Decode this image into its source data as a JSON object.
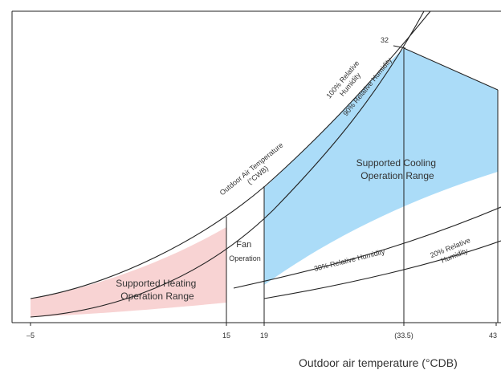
{
  "colors": {
    "heating_fill": "#F8D3D3",
    "cooling_fill": "#ABDCF8",
    "line": "#222222"
  },
  "regions": {
    "heating_line1": "Supported Heating",
    "heating_line2": "Operation Range",
    "cooling_line1": "Supported Cooling",
    "cooling_line2": "Operation Range",
    "fan_line1": "Fan",
    "fan_line2": "Operation"
  },
  "curve_labels": {
    "rh100_line1": "100% Relative",
    "rh100_line2": "Humidity",
    "rh90": "90% Relative Humidity",
    "oat_line1": "Outdoor Air Temperature",
    "oat_line2": "(°CWB)",
    "rh30": "30% Relative Humidity",
    "rh20_line1": "20% Relative",
    "rh20_line2": "Humidity",
    "wb_value": "32"
  },
  "x_axis": {
    "title": "Outdoor air temperature (°CDB)",
    "ticks": [
      "–5",
      "15",
      "19",
      "(33.5)",
      "43"
    ]
  }
}
